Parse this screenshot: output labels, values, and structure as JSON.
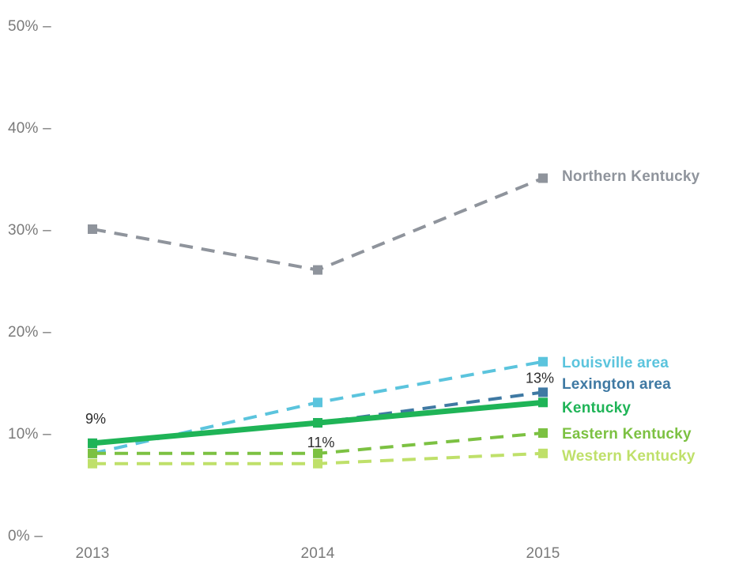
{
  "chart_data": {
    "type": "line",
    "x": [
      "2013",
      "2014",
      "2015"
    ],
    "ylim": [
      0,
      50
    ],
    "yticks": [
      "0%",
      "10%",
      "20%",
      "30%",
      "40%",
      "50%"
    ],
    "grid": false,
    "legend": "direct labels at right end of lines",
    "series": [
      {
        "name": "Northern Kentucky",
        "values": [
          30,
          26,
          35
        ],
        "color": "#8f949c",
        "style": "dashed",
        "marker": "square"
      },
      {
        "name": "Louisville area",
        "values": [
          8,
          13,
          17
        ],
        "color": "#5bc4dd",
        "style": "dashed",
        "marker": "square"
      },
      {
        "name": "Lexington area",
        "values": [
          9,
          11,
          14
        ],
        "color": "#3f79a3",
        "style": "dashed",
        "marker": "square"
      },
      {
        "name": "Kentucky",
        "values": [
          9,
          11,
          13
        ],
        "color": "#1fb457",
        "style": "solid",
        "marker": "square",
        "data_labels": [
          "9%",
          "11%",
          "13%"
        ]
      },
      {
        "name": "Eastern Kentucky",
        "values": [
          8,
          8,
          10
        ],
        "color": "#7cc142",
        "style": "dashed",
        "marker": "square"
      },
      {
        "name": "Western Kentucky",
        "values": [
          7,
          7,
          8
        ],
        "color": "#bfe06a",
        "style": "dashed",
        "marker": "square"
      }
    ]
  }
}
